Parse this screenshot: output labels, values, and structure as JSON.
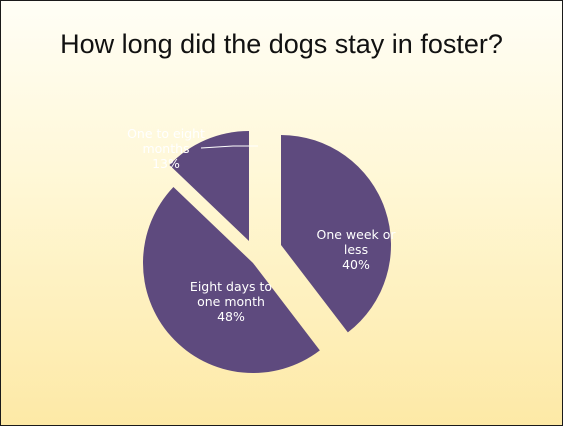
{
  "slide": {
    "title": "How long did the dogs stay in foster?"
  },
  "colors": {
    "slice": "#5e4a7e",
    "label_inside": "#ffffff",
    "label_outside": "#ffffff"
  },
  "chart_data": {
    "type": "pie",
    "title": "How long did the dogs stay in foster?",
    "exploded": true,
    "slices": [
      {
        "label_lines": [
          "One week or",
          "less"
        ],
        "percent_label": "40%",
        "value": 40
      },
      {
        "label_lines": [
          "Eight days to",
          "one month"
        ],
        "percent_label": "48%",
        "value": 48
      },
      {
        "label_lines": [
          "One to eight",
          "months"
        ],
        "percent_label": "13%",
        "value": 13
      }
    ]
  }
}
